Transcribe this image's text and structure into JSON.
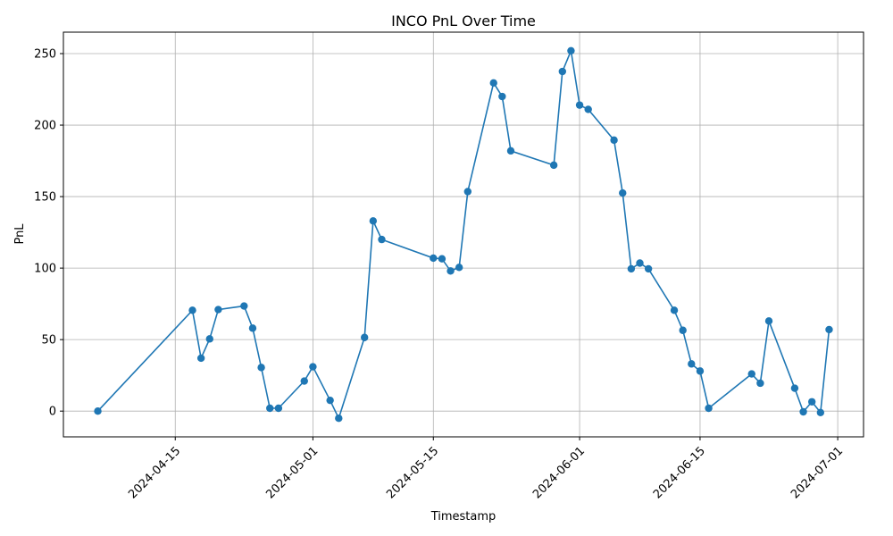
{
  "chart_data": {
    "type": "line",
    "title": "INCO PnL Over Time",
    "xlabel": "Timestamp",
    "ylabel": "PnL",
    "grid": true,
    "marker": "circle",
    "color": "#1f77b4",
    "xlim": [
      "2024-04-02",
      "2024-07-04"
    ],
    "ylim": [
      -18,
      265
    ],
    "x_ticks": [
      "2024-04-15",
      "2024-05-01",
      "2024-05-15",
      "2024-06-01",
      "2024-06-15",
      "2024-07-01"
    ],
    "y_ticks": [
      0,
      50,
      100,
      150,
      200,
      250
    ],
    "series": [
      {
        "x": [
          "2024-04-06",
          "2024-04-17",
          "2024-04-18",
          "2024-04-19",
          "2024-04-20",
          "2024-04-23",
          "2024-04-24",
          "2024-04-25",
          "2024-04-26",
          "2024-04-27",
          "2024-04-30",
          "2024-05-01",
          "2024-05-03",
          "2024-05-04",
          "2024-05-07",
          "2024-05-08",
          "2024-05-09",
          "2024-05-15",
          "2024-05-16",
          "2024-05-17",
          "2024-05-18",
          "2024-05-19",
          "2024-05-22",
          "2024-05-23",
          "2024-05-24",
          "2024-05-29",
          "2024-05-30",
          "2024-05-31",
          "2024-06-01",
          "2024-06-02",
          "2024-06-05",
          "2024-06-06",
          "2024-06-07",
          "2024-06-08",
          "2024-06-09",
          "2024-06-12",
          "2024-06-13",
          "2024-06-14",
          "2024-06-15",
          "2024-06-16",
          "2024-06-21",
          "2024-06-22",
          "2024-06-23",
          "2024-06-26",
          "2024-06-27",
          "2024-06-28",
          "2024-06-29",
          "2024-06-30"
        ],
        "values": [
          0,
          70.5,
          37,
          50.5,
          71,
          73.5,
          58,
          30.5,
          2,
          2,
          21,
          31,
          7.5,
          -5,
          51.5,
          133,
          120,
          107,
          106.5,
          98,
          100.5,
          153.5,
          229.5,
          220,
          182,
          172,
          237.5,
          252,
          214,
          211,
          189.5,
          152.5,
          99.5,
          103.5,
          99.5,
          70.5,
          56.5,
          33,
          28,
          2,
          26,
          19.5,
          63,
          16,
          -0.5,
          6.5,
          -1,
          57
        ]
      }
    ]
  }
}
